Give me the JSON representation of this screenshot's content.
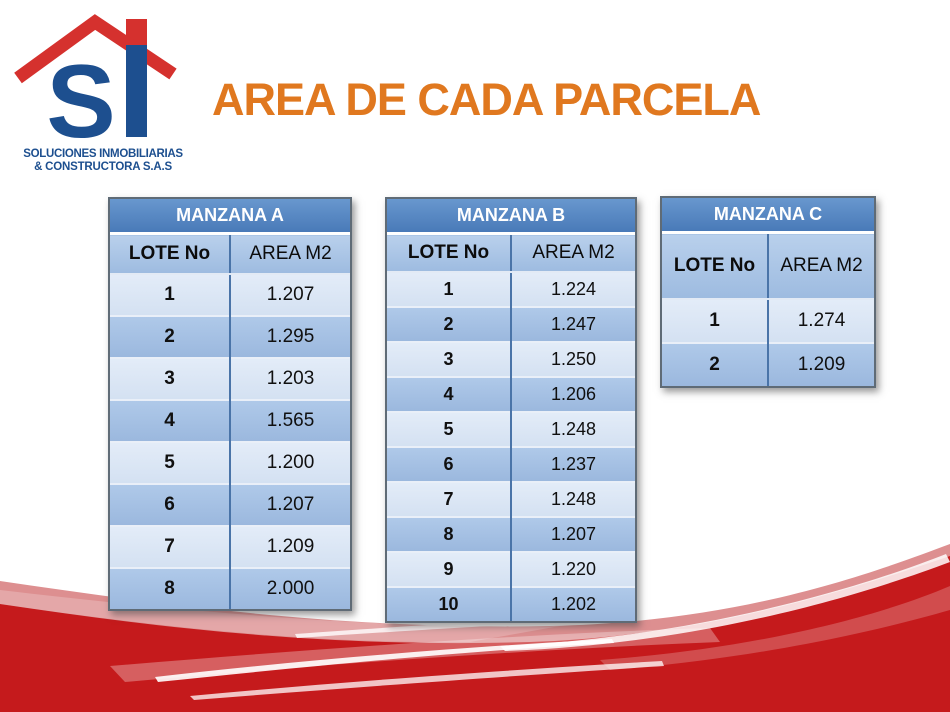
{
  "slide": {
    "title": "AREA DE CADA PARCELA"
  },
  "logo": {
    "monogram_s": "S",
    "line1": "SOLUCIONES INMOBILIARIAS",
    "line2": "& CONSTRUCTORA S.A.S"
  },
  "tables": [
    {
      "title": "MANZANA A",
      "columns": [
        "LOTE No",
        "AREA M2"
      ],
      "rows": [
        [
          "1",
          "1.207"
        ],
        [
          "2",
          "1.295"
        ],
        [
          "3",
          "1.203"
        ],
        [
          "4",
          "1.565"
        ],
        [
          "5",
          "1.200"
        ],
        [
          "6",
          "1.207"
        ],
        [
          "7",
          "1.209"
        ],
        [
          "8",
          "2.000"
        ]
      ]
    },
    {
      "title": "MANZANA B",
      "columns": [
        "LOTE No",
        "AREA M2"
      ],
      "rows": [
        [
          "1",
          "1.224"
        ],
        [
          "2",
          "1.247"
        ],
        [
          "3",
          "1.250"
        ],
        [
          "4",
          "1.206"
        ],
        [
          "5",
          "1.248"
        ],
        [
          "6",
          "1.237"
        ],
        [
          "7",
          "1.248"
        ],
        [
          "8",
          "1.207"
        ],
        [
          "9",
          "1.220"
        ],
        [
          "10",
          "1.202"
        ]
      ]
    },
    {
      "title": "MANZANA C",
      "columns": [
        "LOTE No",
        "AREA M2"
      ],
      "rows": [
        [
          "1",
          "1.274"
        ],
        [
          "2",
          "1.209"
        ]
      ]
    }
  ],
  "colors": {
    "title_orange": "#E0781F",
    "logo_blue": "#1D4F8F",
    "logo_red": "#D5312E",
    "table_header_blue": "#4F81BD",
    "table_colhead_blue": "#A9C4E5",
    "band_light": "#DCE6F4",
    "band_medium": "#A4C0E2",
    "wave_red": "#C51A1C"
  }
}
